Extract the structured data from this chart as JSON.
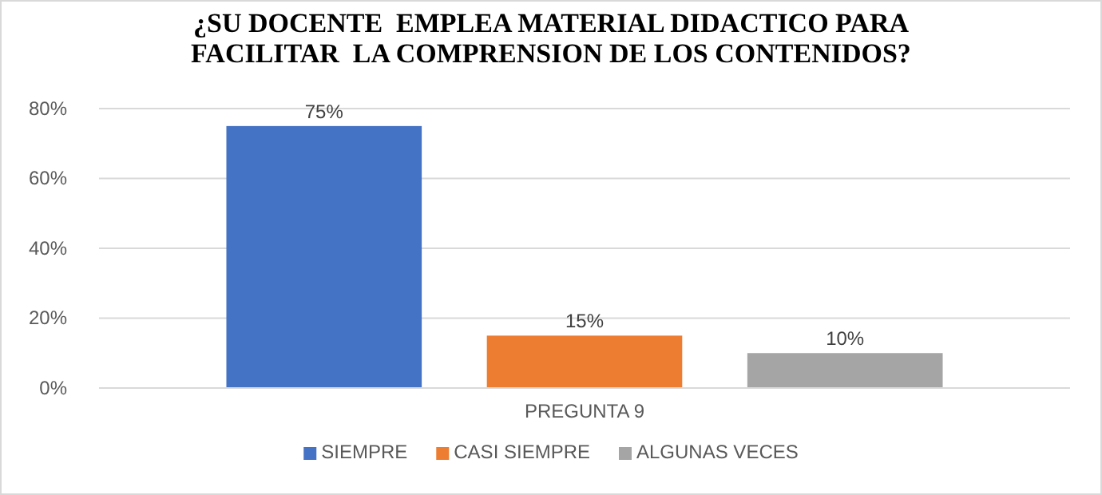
{
  "chart_data": {
    "type": "bar",
    "title": "¿SU DOCENTE  EMPLEA MATERIAL DIDACTICO PARA FACILITAR  LA COMPRENSION DE LOS CONTENIDOS?",
    "categories": [
      "PREGUNTA 9"
    ],
    "series": [
      {
        "name": "SIEMPRE",
        "color": "#4472c4",
        "values": [
          75
        ],
        "value_labels": [
          "75%"
        ]
      },
      {
        "name": "CASI SIEMPRE",
        "color": "#ed7d31",
        "values": [
          15
        ],
        "value_labels": [
          "15%"
        ]
      },
      {
        "name": "ALGUNAS VECES",
        "color": "#a5a5a5",
        "values": [
          10
        ],
        "value_labels": [
          "10%"
        ]
      }
    ],
    "ylim": [
      0,
      80
    ],
    "yticks": [
      {
        "value": 0,
        "label": "0%"
      },
      {
        "value": 20,
        "label": "20%"
      },
      {
        "value": 40,
        "label": "40%"
      },
      {
        "value": 60,
        "label": "60%"
      },
      {
        "value": 80,
        "label": "80%"
      }
    ],
    "grid": "y",
    "legend": "bottom"
  }
}
